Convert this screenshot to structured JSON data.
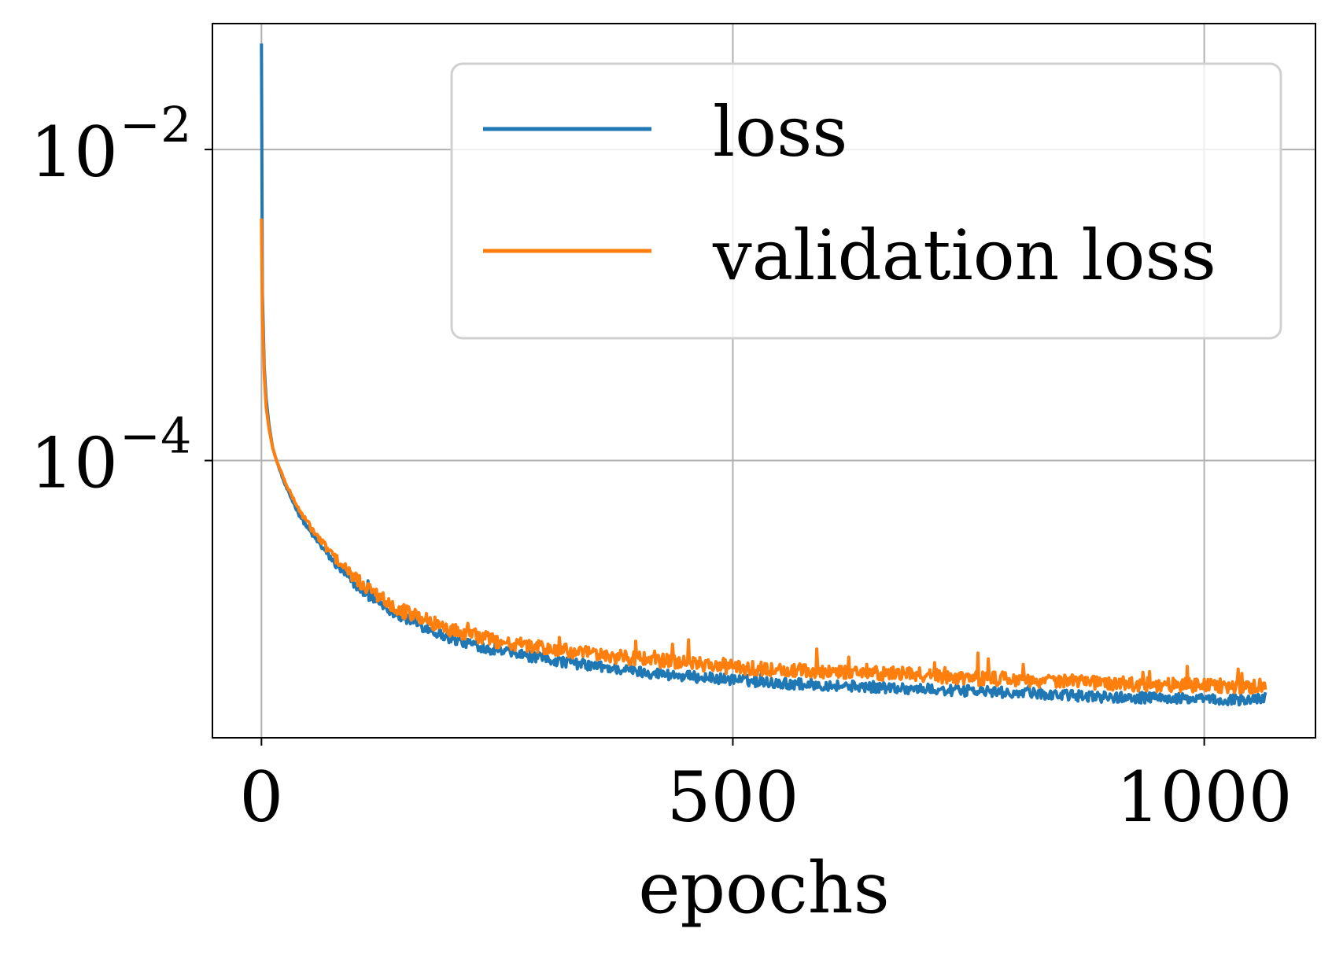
{
  "chart_data": {
    "type": "line",
    "xlabel": "epochs",
    "ylabel": "",
    "title": "",
    "xlim": [
      -52,
      1118
    ],
    "ylim": [
      1.65e-06,
      0.0645
    ],
    "y_scale": "log",
    "grid": true,
    "legend": {
      "placement": "top-right"
    },
    "x_ticks": [
      {
        "value": 0,
        "label": "0"
      },
      {
        "value": 500,
        "label": "500"
      },
      {
        "value": 1000,
        "label": "1000"
      }
    ],
    "y_ticks": [
      {
        "value": 0.01,
        "base": "10",
        "exponent": "−2"
      },
      {
        "value": 0.0001,
        "base": "10",
        "exponent": "−4"
      }
    ],
    "series": [
      {
        "name": "loss",
        "color": "#1f77b4",
        "x": [
          0,
          1,
          3,
          5,
          8,
          12,
          16,
          20,
          25,
          30,
          40,
          50,
          60,
          80,
          100,
          120,
          150,
          200,
          250,
          300,
          350,
          400,
          450,
          500,
          550,
          600,
          650,
          700,
          750,
          800,
          850,
          900,
          950,
          1000,
          1050,
          1065
        ],
        "y": [
          0.048,
          0.0012,
          0.0004,
          0.00025,
          0.00017,
          0.00012,
          0.0001,
          8.5e-05,
          7e-05,
          6e-05,
          4.5e-05,
          3.6e-05,
          3e-05,
          2.1e-05,
          1.58e-05,
          1.28e-05,
          9.8e-06,
          7.2e-06,
          6e-06,
          5.3e-06,
          4.8e-06,
          4.4e-06,
          4.1e-06,
          3.9e-06,
          3.7e-06,
          3.6e-06,
          3.5e-06,
          3.4e-06,
          3.3e-06,
          3.2e-06,
          3.1e-06,
          3e-06,
          2.98e-06,
          2.9e-06,
          2.9e-06,
          3e-06
        ]
      },
      {
        "name": "validation loss",
        "color": "#ff7f0e",
        "x": [
          0,
          1,
          3,
          5,
          8,
          12,
          16,
          20,
          25,
          30,
          40,
          50,
          60,
          80,
          100,
          120,
          150,
          200,
          250,
          300,
          350,
          400,
          450,
          500,
          550,
          600,
          650,
          700,
          750,
          800,
          850,
          900,
          950,
          1000,
          1050,
          1065
        ],
        "y": [
          0.0036,
          0.00085,
          0.00035,
          0.00022,
          0.00016,
          0.00012,
          0.0001,
          8.7e-05,
          7.3e-05,
          6.3e-05,
          4.8e-05,
          3.9e-05,
          3.2e-05,
          2.3e-05,
          1.72e-05,
          1.4e-05,
          1.08e-05,
          8.2e-06,
          6.9e-06,
          6.2e-06,
          5.7e-06,
          5.3e-06,
          5e-06,
          4.7e-06,
          4.5e-06,
          4.4e-06,
          4.3e-06,
          4.2e-06,
          4e-06,
          3.9e-06,
          3.8e-06,
          3.7e-06,
          3.6e-06,
          3.6e-06,
          3.5e-06,
          3.6e-06
        ]
      }
    ]
  }
}
